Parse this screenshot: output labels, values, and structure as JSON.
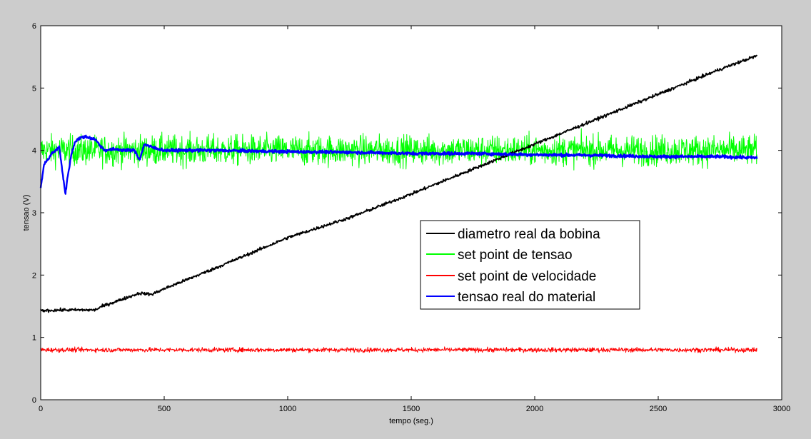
{
  "chart_data": {
    "type": "line",
    "title": "",
    "xlabel": "tempo (seg.)",
    "ylabel": "tensao (V)",
    "xlim": [
      0,
      3000
    ],
    "ylim": [
      0,
      6
    ],
    "xticks": [
      0,
      500,
      1000,
      1500,
      2000,
      2500,
      3000
    ],
    "yticks": [
      0,
      1,
      2,
      3,
      4,
      5,
      6
    ],
    "xtick_labels": [
      "0",
      "500",
      "1000",
      "1500",
      "2000",
      "2500",
      "3000"
    ],
    "ytick_labels": [
      "0",
      "1",
      "2",
      "3",
      "4",
      "5",
      "6"
    ],
    "grid": false,
    "legend_position": "center-right",
    "series": [
      {
        "name": "diametro real da bobina",
        "color": "#000000",
        "x": [
          0,
          100,
          220,
          250,
          300,
          350,
          400,
          450,
          500,
          700,
          1000,
          1250,
          1500,
          1750,
          2000,
          2250,
          2500,
          2750,
          2900
        ],
        "y": [
          1.43,
          1.44,
          1.44,
          1.5,
          1.57,
          1.64,
          1.71,
          1.69,
          1.78,
          2.1,
          2.6,
          2.92,
          3.3,
          3.7,
          4.1,
          4.5,
          4.9,
          5.3,
          5.52
        ]
      },
      {
        "name": "set point de tensao",
        "color": "#00ff00",
        "x": [
          0,
          2900
        ],
        "y": [
          4.0,
          4.0
        ]
      },
      {
        "name": "set point de velocidade",
        "color": "#ff0000",
        "x": [
          0,
          2900
        ],
        "y": [
          0.8,
          0.8
        ]
      },
      {
        "name": "tensao real do material",
        "color": "#0000ff",
        "x": [
          0,
          15,
          30,
          45,
          60,
          75,
          90,
          100,
          110,
          125,
          140,
          160,
          180,
          200,
          220,
          240,
          260,
          300,
          350,
          380,
          400,
          420,
          450,
          500,
          700,
          1000,
          1250,
          1500,
          1750,
          2000,
          2250,
          2500,
          2750,
          2900
        ],
        "y": [
          3.4,
          3.8,
          3.85,
          3.95,
          4.0,
          4.05,
          3.6,
          3.3,
          3.6,
          3.95,
          4.15,
          4.2,
          4.22,
          4.2,
          4.18,
          4.08,
          4.0,
          4.02,
          4.0,
          4.0,
          3.85,
          4.1,
          4.05,
          4.0,
          4.0,
          3.98,
          3.97,
          3.95,
          3.95,
          3.93,
          3.92,
          3.9,
          3.9,
          3.88
        ]
      }
    ]
  }
}
